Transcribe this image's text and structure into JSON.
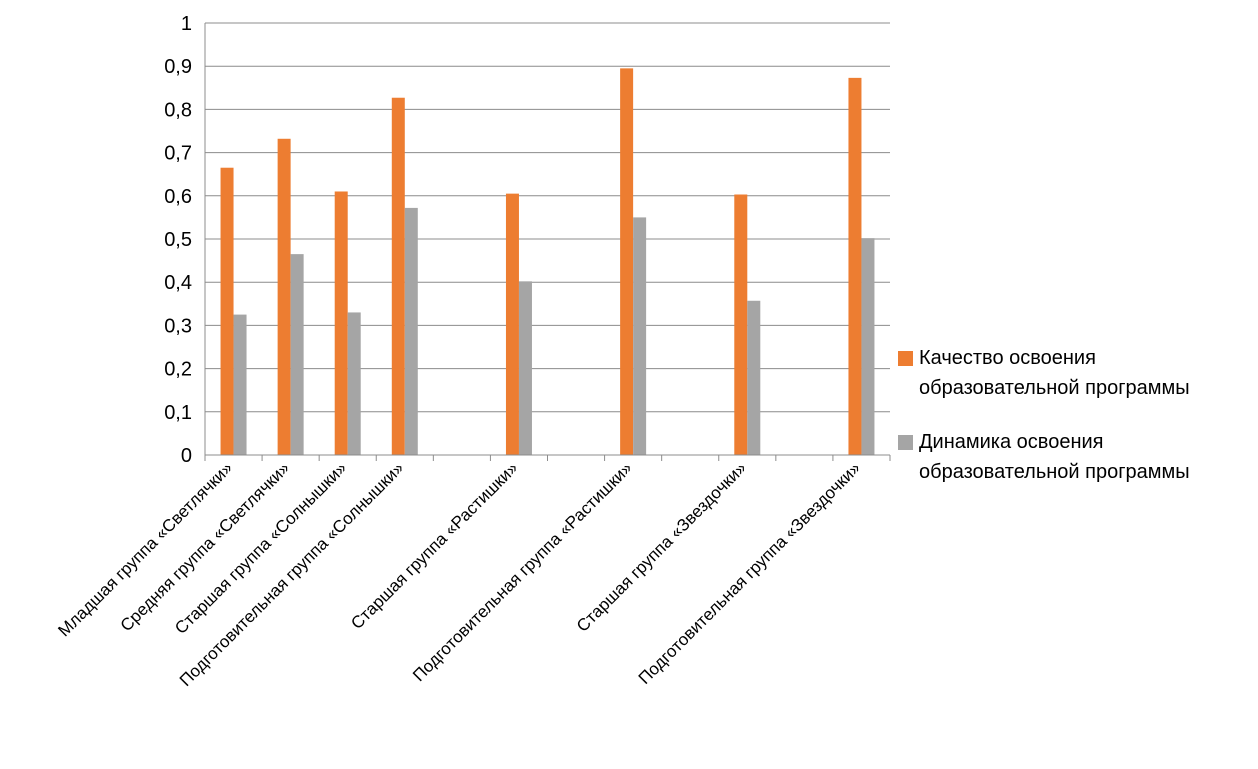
{
  "chart_data": {
    "type": "bar",
    "categories": [
      "Младшая группа «Светлячки»",
      "Средняя группа «Светлячки»",
      "Старшая группа «Солнышки»",
      "Подготовительная группа «Солнышки»",
      "",
      "Старшая группа «Растишки»",
      "",
      "Подготовительная группа «Растишки»",
      "",
      "Старшая группа «Звездочки»",
      "",
      "Подготовительная группа «Звездочки»"
    ],
    "series": [
      {
        "name": "Качество  освоения образовательной программы",
        "color": "#ED7D31",
        "values": [
          0.665,
          0.732,
          0.61,
          0.827,
          null,
          0.605,
          null,
          0.895,
          null,
          0.603,
          null,
          0.873
        ]
      },
      {
        "name": "Динамика освоения образовательной программы",
        "color": "#A5A5A5",
        "values": [
          0.325,
          0.465,
          0.33,
          0.572,
          null,
          0.402,
          null,
          0.55,
          null,
          0.357,
          null,
          0.502
        ]
      }
    ],
    "ylim": [
      0,
      1
    ],
    "yticks": [
      "0",
      "0,1",
      "0,2",
      "0,3",
      "0,4",
      "0,5",
      "0,6",
      "0,7",
      "0,8",
      "0,9",
      "1"
    ],
    "grid": true,
    "legend_position": "right",
    "title": "",
    "xlabel": "",
    "ylabel": ""
  }
}
